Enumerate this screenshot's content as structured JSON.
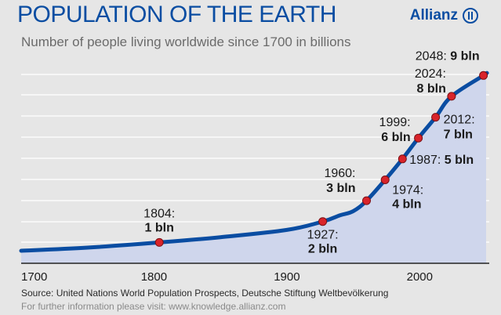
{
  "header": {
    "title": "POPULATION OF THE EARTH",
    "subtitle": "Number of people living worldwide since 1700 in billions",
    "brand": "Allianz"
  },
  "chart_data": {
    "type": "area",
    "title": "POPULATION OF THE EARTH",
    "subtitle": "Number of people living worldwide since 1700 in billions",
    "xlabel": "",
    "ylabel": "",
    "xlim": [
      1700,
      2050
    ],
    "ylim": [
      0,
      9.5
    ],
    "x_ticks": [
      1700,
      1800,
      1900,
      2000
    ],
    "grid": true,
    "series": [
      {
        "x": [
          1700,
          1750,
          1804,
          1850,
          1900,
          1927,
          1940,
          1950,
          1960,
          1974,
          1987,
          1999,
          2012,
          2024,
          2048,
          2050
        ],
        "values": [
          0.6,
          0.75,
          1,
          1.25,
          1.6,
          2,
          2.3,
          2.5,
          3,
          4,
          5,
          6,
          7,
          8,
          9,
          9.1
        ]
      }
    ],
    "annotations": [
      {
        "x": 1804,
        "y": 1,
        "year": "1804:",
        "value": "1 bln"
      },
      {
        "x": 1927,
        "y": 2,
        "year": "1927:",
        "value": "2 bln"
      },
      {
        "x": 1960,
        "y": 3,
        "year": "1960:",
        "value": "3 bln"
      },
      {
        "x": 1974,
        "y": 4,
        "year": "1974:",
        "value": "4 bln"
      },
      {
        "x": 1987,
        "y": 5,
        "year": "1987:",
        "value": "5 bln"
      },
      {
        "x": 1999,
        "y": 6,
        "year": "1999:",
        "value": "6 bln"
      },
      {
        "x": 2012,
        "y": 7,
        "year": "2012:",
        "value": "7 bln"
      },
      {
        "x": 2024,
        "y": 8,
        "year": "2024:",
        "value": "8 bln"
      },
      {
        "x": 2048,
        "y": 9,
        "year": "2048:",
        "value": "9 bln"
      }
    ],
    "colors": {
      "line": "#0a4da2",
      "area": "#cfd6ec",
      "marker": "#d9242b",
      "grid": "#ffffff"
    }
  },
  "footer": {
    "source": "Source: United Nations World Population Prospects, Deutsche Stiftung Weltbevölkerung",
    "info": "For further information please visit: www.knowledge.allianz.com"
  }
}
